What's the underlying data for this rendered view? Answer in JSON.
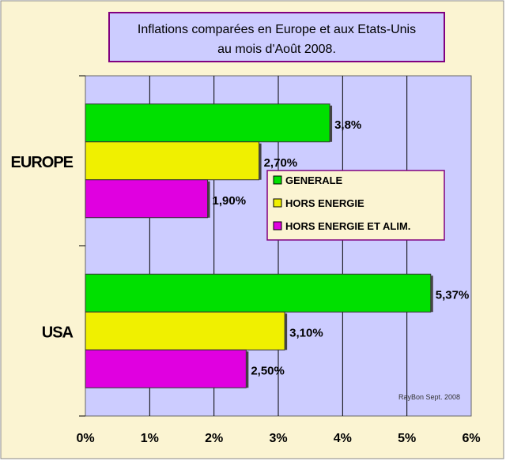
{
  "chart_data": {
    "type": "bar",
    "orientation": "horizontal",
    "title_line1": "Inflations comparées en Europe et aux Etats-Unis",
    "title_line2": "au mois d'Août  2008.",
    "categories": [
      "EUROPE",
      "USA"
    ],
    "series": [
      {
        "name": "GENERALE",
        "color": "#00e000",
        "values": [
          3.8,
          5.37
        ],
        "labels": [
          "3,8%",
          "5,37%"
        ]
      },
      {
        "name": "HORS ENERGIE",
        "color": "#f0f000",
        "values": [
          2.7,
          3.1
        ],
        "labels": [
          "2,70%",
          "3,10%"
        ]
      },
      {
        "name": "HORS ENERGIE ET ALIM.",
        "color": "#e000e0",
        "values": [
          1.9,
          2.5
        ],
        "labels": [
          "1,90%",
          "2,50%"
        ]
      }
    ],
    "xlim": [
      0,
      6
    ],
    "xticks": [
      0,
      1,
      2,
      3,
      4,
      5,
      6
    ],
    "xtick_labels": [
      "0%",
      "1%",
      "2%",
      "3%",
      "4%",
      "5%",
      "6%"
    ],
    "grid": true,
    "legend_position": "center-right",
    "annotation": "RayBon Sept. 2008"
  },
  "colors": {
    "background": "#fbf4d2",
    "plot": "#ccccff",
    "frame": "#800080"
  }
}
